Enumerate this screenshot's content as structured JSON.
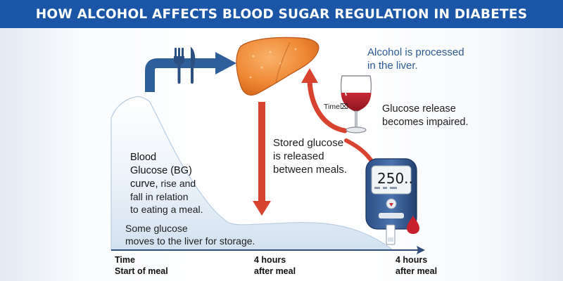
{
  "title": "HOW ALCOHOL AFFECTS BLOOD SUGAR REGULATION IN DIABETES",
  "icons": [
    "fork-knife-icon",
    "liver-icon",
    "wine-glass-icon",
    "glucose-meter-icon",
    "blood-drop-icon"
  ],
  "colors": {
    "title_bar": "#1b56a6",
    "blue_arrow": "#2f5f9a",
    "red_arrow": "#d8432f",
    "liver": "#f08a3a",
    "wine": "#b3202a",
    "curve_fill": "#dde8f4"
  },
  "captions": {
    "alcohol_processed": [
      "Alcohol is processed",
      "in the liver."
    ],
    "glucose_release": [
      "Glucose release",
      "becomes impaired."
    ],
    "stored_glucose": [
      "Stored glucose",
      "is released",
      "between meals."
    ],
    "bg_curve_title": [
      "Blood",
      "Glucose (BG)",
      "curve,"
    ],
    "bg_curve_rest": [
      "rise and",
      "fall in relation",
      "to eating a meal."
    ],
    "some_glucose": [
      "Some glucose",
      "moves to the liver for storage."
    ],
    "time_tag": "Time⌧"
  },
  "meter": {
    "reading": "250.."
  },
  "axis": {
    "labels": [
      [
        "Time",
        "Start of meal"
      ],
      [
        "4 hours",
        "after meal"
      ],
      [
        "4 hours",
        "after meal"
      ]
    ]
  }
}
